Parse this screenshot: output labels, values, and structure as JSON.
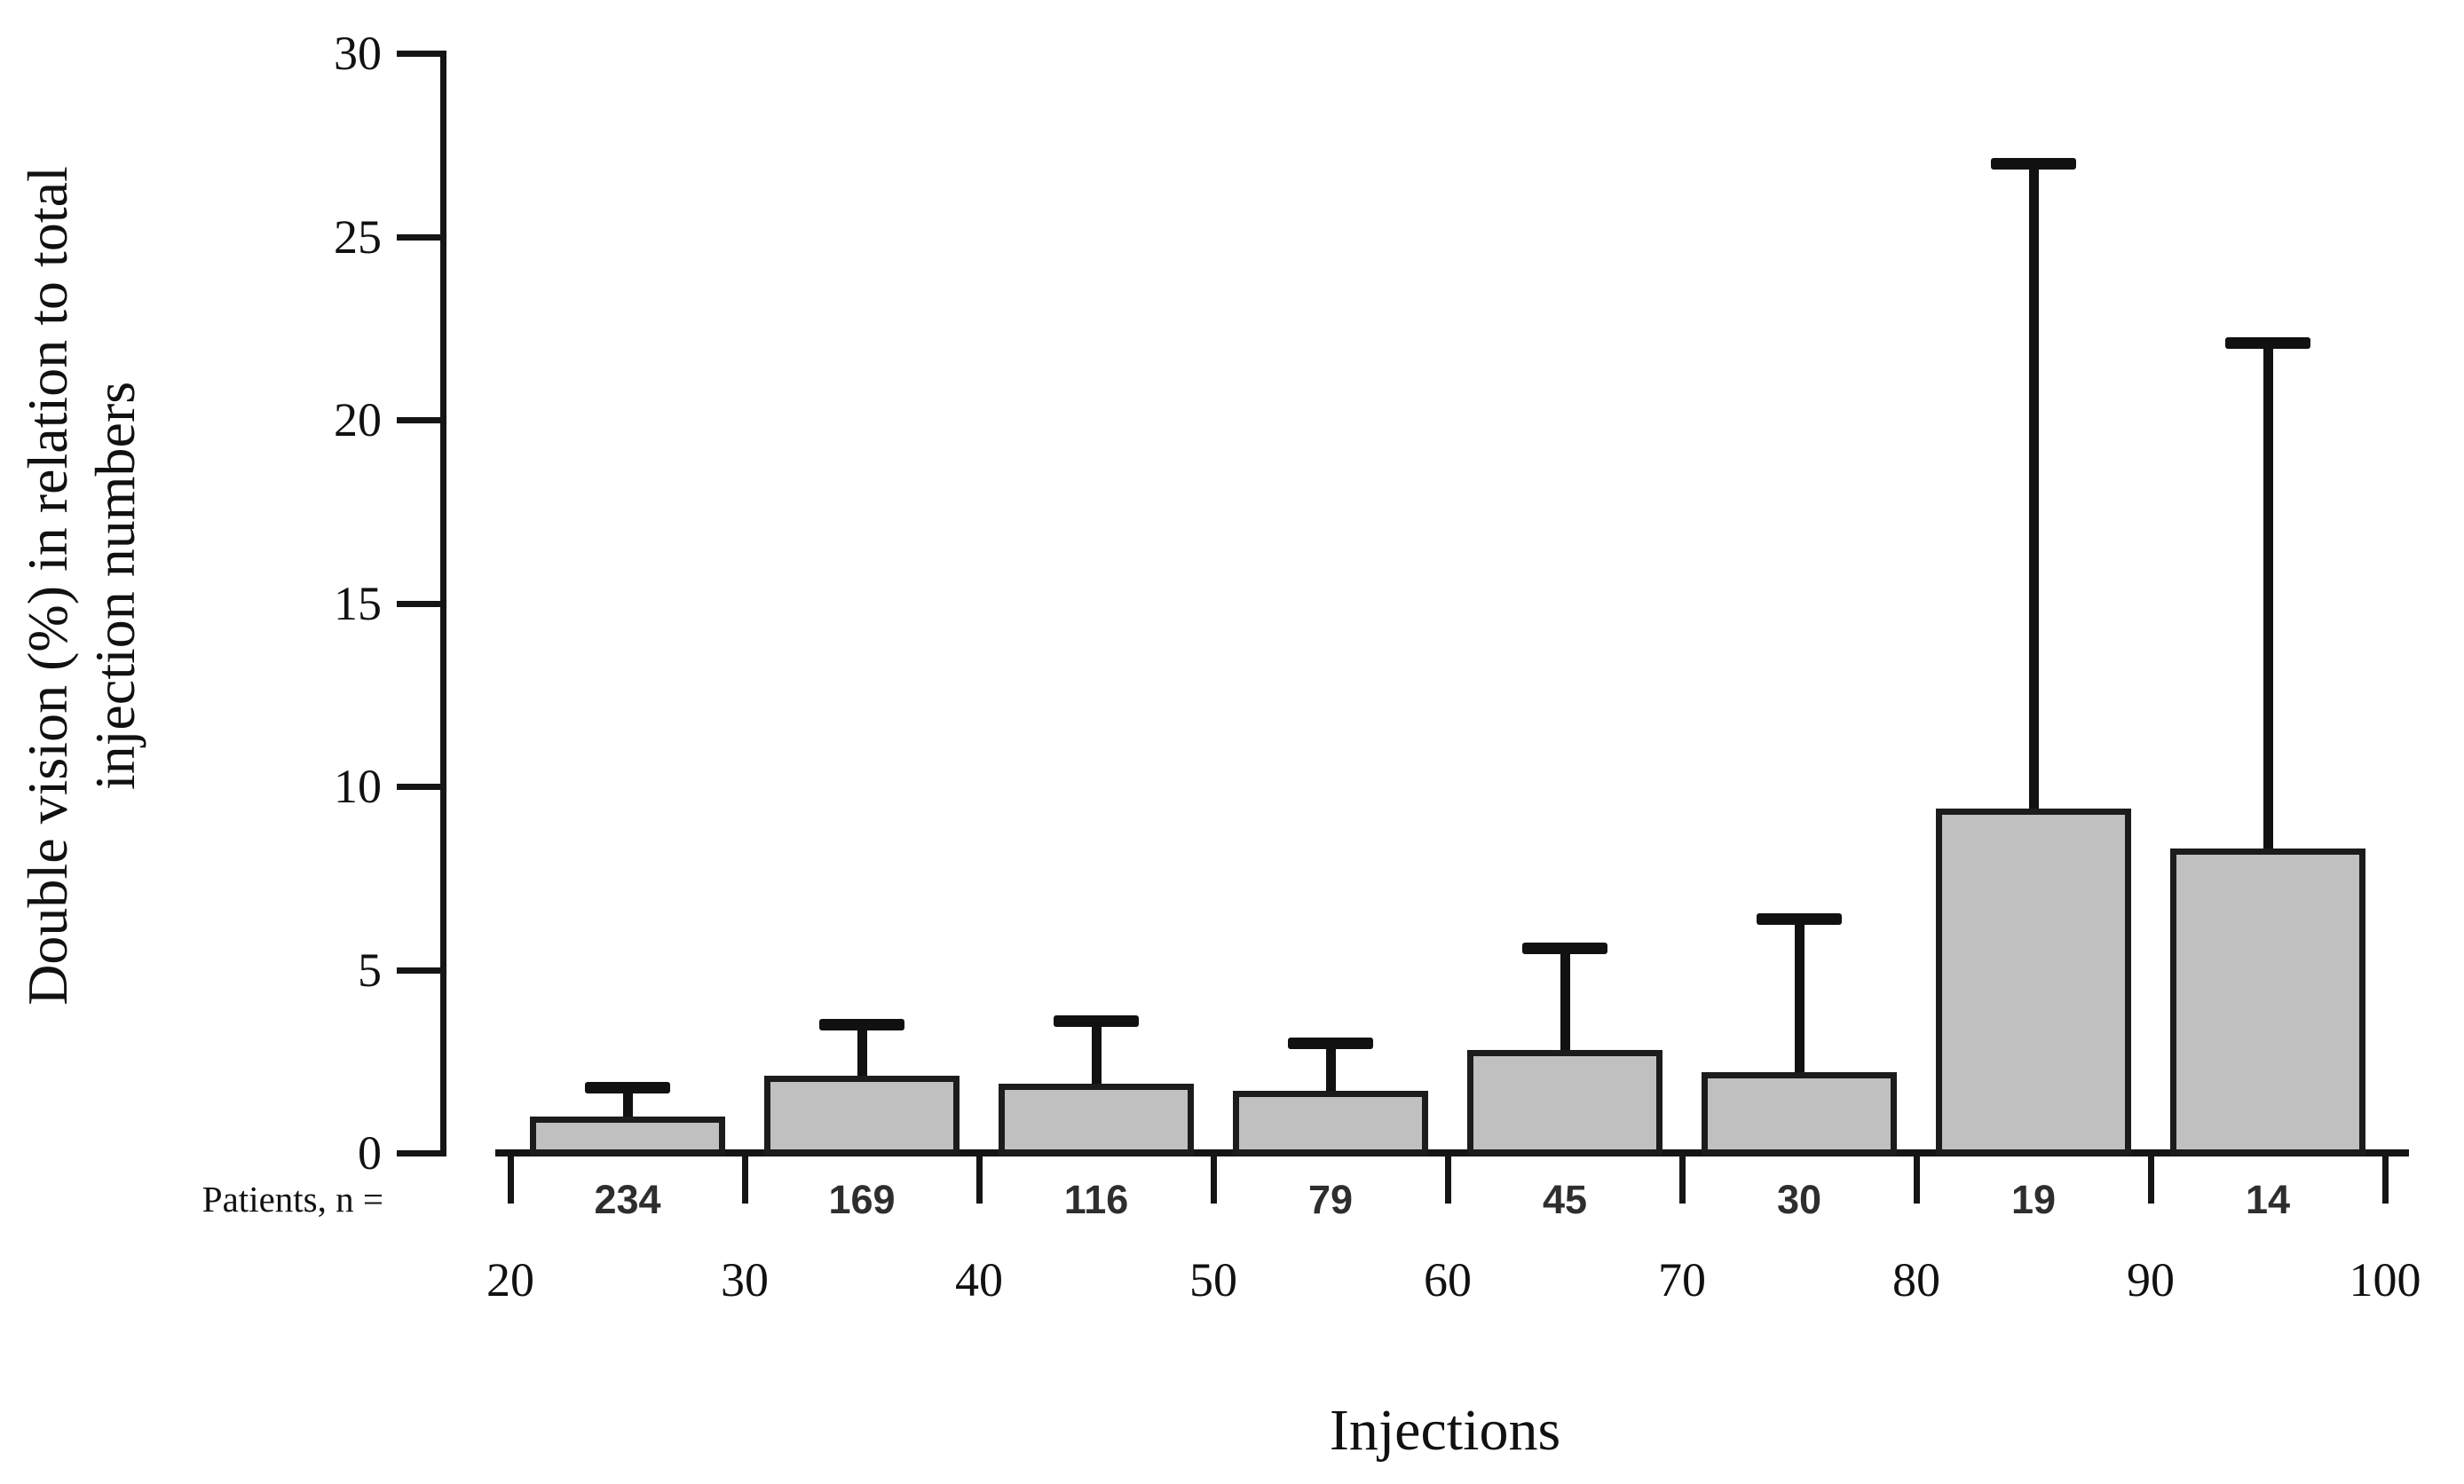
{
  "figure": {
    "y_axis_title_line1": "Double vision (%) in relation to total",
    "y_axis_title_line2": "injection numbers",
    "x_axis_title": "Injections",
    "patients_prefix": "Patients, n ="
  },
  "chart_data": {
    "type": "bar",
    "title": "",
    "xlabel": "Injections",
    "ylabel": "Double vision (%) in relation to total injection numbers",
    "x_boundary_ticks": [
      20,
      30,
      40,
      50,
      60,
      70,
      80,
      90,
      100
    ],
    "categories": [
      "20-30",
      "30-40",
      "40-50",
      "50-60",
      "60-70",
      "70-80",
      "80-90",
      "90-100"
    ],
    "values": [
      1.0,
      2.1,
      1.9,
      1.7,
      2.8,
      2.2,
      9.4,
      8.3
    ],
    "error_bar_top_values": [
      1.8,
      3.5,
      3.6,
      3.0,
      5.6,
      6.4,
      27.0,
      22.1
    ],
    "patients_n": [
      234,
      169,
      116,
      79,
      45,
      30,
      19,
      14
    ],
    "patients_row_label": "Patients, n =",
    "y_ticks": [
      0,
      5,
      10,
      15,
      20,
      25,
      30
    ],
    "ylim": [
      0,
      30
    ],
    "grid": false,
    "legend": false,
    "colors": {
      "bar_fill": "#c0c0c0",
      "bar_border": "#1c1c1c",
      "error_bar": "#111111",
      "axis": "#151515",
      "text": "#111111",
      "background": "#ffffff"
    }
  }
}
